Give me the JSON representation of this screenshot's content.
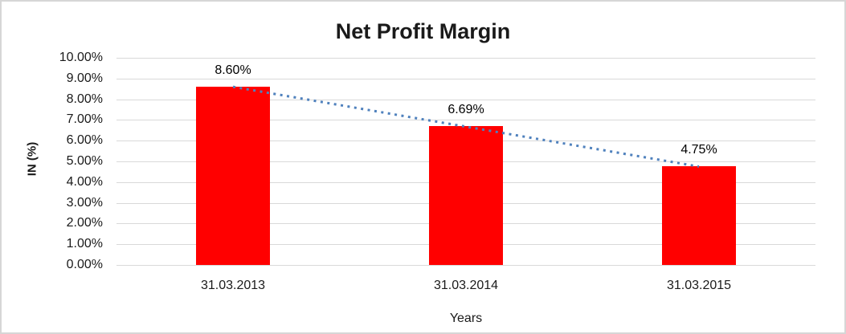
{
  "chart_data": {
    "type": "bar",
    "title": "Net Profit Margin",
    "categories": [
      "31.03.2013",
      "31.03.2014",
      "31.03.2015"
    ],
    "values": [
      8.6,
      6.69,
      4.75
    ],
    "data_labels": [
      "8.60%",
      "6.69%",
      "4.75%"
    ],
    "xlabel": "Years",
    "ylabel": "IN (%)",
    "ylim": [
      0,
      10
    ],
    "grid": true,
    "legend": "none",
    "y_ticks": [
      {
        "value": 0,
        "label": "0.00%"
      },
      {
        "value": 1,
        "label": "1.00%"
      },
      {
        "value": 2,
        "label": "2.00%"
      },
      {
        "value": 3,
        "label": "3.00%"
      },
      {
        "value": 4,
        "label": "4.00%"
      },
      {
        "value": 5,
        "label": "5.00%"
      },
      {
        "value": 6,
        "label": "6.00%"
      },
      {
        "value": 7,
        "label": "7.00%"
      },
      {
        "value": 8,
        "label": "8.00%"
      },
      {
        "value": 9,
        "label": "9.00%"
      },
      {
        "value": 10,
        "label": "10.00%"
      }
    ],
    "trendline": {
      "type": "linear",
      "style": "dotted",
      "color": "#4F81BD",
      "start_value": 8.6,
      "end_value": 4.75
    },
    "colors": {
      "bar": "#FF0000",
      "gridline": "#D9D9D9",
      "chart_border": "#D6D6D6",
      "text": "#1A1A1A",
      "background": "#FFFFFF"
    }
  }
}
